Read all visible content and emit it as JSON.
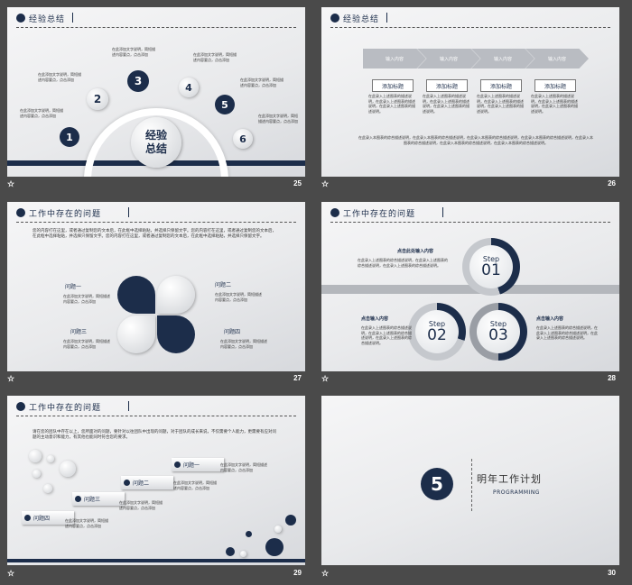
{
  "slides": [
    {
      "number": "25",
      "title": "经验总结",
      "center_label": [
        "经验",
        "总结"
      ],
      "steps": [
        "1",
        "2",
        "3",
        "4",
        "5",
        "6"
      ],
      "caption": "在此添加文字说明，简短描述内容要点，点击添加"
    },
    {
      "number": "26",
      "title": "经验总结",
      "chevrons": [
        "输入内容",
        "输入内容",
        "输入内容",
        "输入内容"
      ],
      "add_titles": [
        "添加标题",
        "添加标题",
        "添加标题",
        "添加标题"
      ],
      "column_text": "在此录入上述图表的描述说明，在此录入上述图表的描述说明，在此录入上述图表的描述说明。",
      "bottom_text": "在此录入本图表的综合描述说明，在此录入本图表的综合描述说明，在此录入本图表的综合描述说明，在此录入本图表的综合描述说明，在此录入本图表的综合描述说明，在此录入本图表的综合描述说明，在此录入本图表的综合描述说明。"
    },
    {
      "number": "27",
      "title": "工作中存在的问题",
      "intro": "您的内容打在这里，或者通过复制您的文本后，在此框中选择粘贴，并选择只保留文字。您的内容打在这里，或者通过复制您的文本后，在此框中选择粘贴，并选择只保留文字。您的内容打在这里，或者通过复制您的文本后，在此框中选择粘贴，并选择只保留文字。",
      "problems": [
        "问题一",
        "问题二",
        "问题三",
        "问题四"
      ],
      "caption": "在此添加文字说明，简短描述内容要点，点击添加"
    },
    {
      "number": "28",
      "title": "工作中存在的问题",
      "step_word": "Step",
      "steps": [
        {
          "num": "01",
          "heading": "点击此处输入内容"
        },
        {
          "num": "02",
          "heading": "点击输入内容"
        },
        {
          "num": "03",
          "heading": "点击输入内容"
        }
      ],
      "desc": "在此录入上述图表的综合描述说明，在此录入上述图表的综合描述说明，在此录入上述图表的综合描述说明。"
    },
    {
      "number": "29",
      "title": "工作中存在的问题",
      "intro": "请在您的团队中存在以上，您所面对的问题，要针对以往团队中出现的问题，对于团队的成长来说，不仅需要个人能力，更需要有应对问题的主动意识和能力，有其他也能同时符合您的要求。",
      "problems": [
        "问题一",
        "问题二",
        "问题三",
        "问题四"
      ],
      "caption": "在此添加文字说明，简短描述内容要点，点击添加"
    },
    {
      "number": "30",
      "section_number": "5",
      "section_title": "明年工作计划",
      "section_subtitle": "PROGRAMMING"
    }
  ],
  "colors": {
    "navy": "#1c2d4a",
    "frame": "#4a4a4a"
  },
  "icons": {
    "slide_strip": "star-icon"
  }
}
